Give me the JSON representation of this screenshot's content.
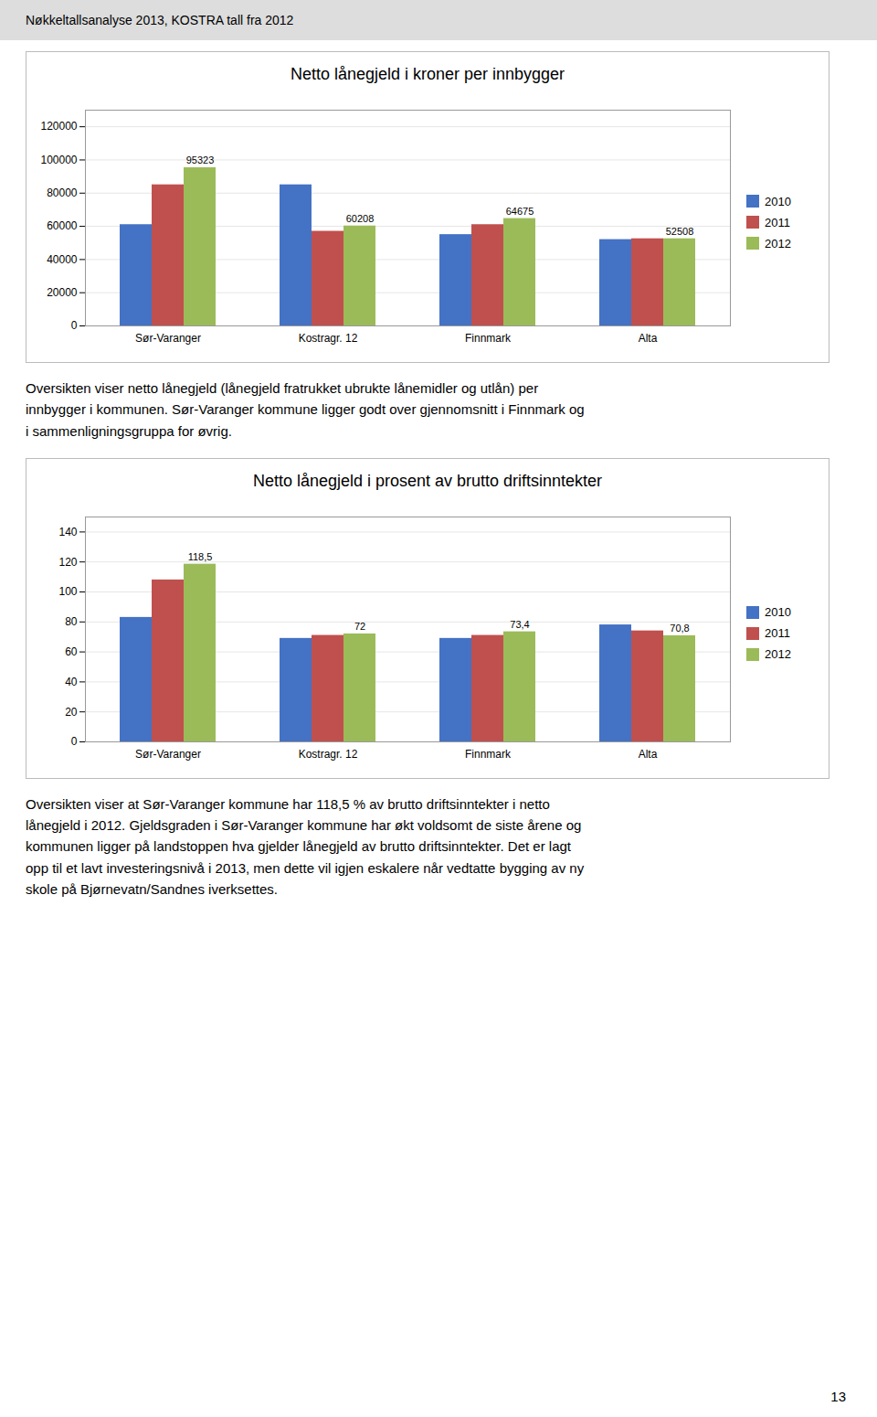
{
  "header": "Nøkkeltallsanalyse 2013, KOSTRA tall fra 2012",
  "chart_data": [
    {
      "type": "bar",
      "title": "Netto lånegjeld i kroner per innbygger",
      "categories": [
        "Sør-Varanger",
        "Kostragr. 12",
        "Finnmark",
        "Alta"
      ],
      "series": [
        {
          "name": "2010",
          "color": "#4472C4",
          "values": [
            61000,
            85000,
            55000,
            52000
          ]
        },
        {
          "name": "2011",
          "color": "#C0504D",
          "values": [
            85000,
            57000,
            61000,
            52500
          ]
        },
        {
          "name": "2012",
          "color": "#9BBB59",
          "values": [
            95323,
            60208,
            64675,
            52508
          ],
          "data_labels": true
        }
      ],
      "ylim": [
        0,
        130000
      ],
      "yticks": [
        0,
        20000,
        40000,
        60000,
        80000,
        100000,
        120000
      ],
      "grid": true,
      "legend": "right",
      "annotations": [
        "Oversikten viser netto lånegjeld (lånegjeld fratrukket ubrukte lånemidler og utlån) per",
        "innbygger i kommunen. Sør-Varanger kommune ligger godt over gjennomsnitt i Finnmark og",
        "i sammenligningsgruppa for øvrig."
      ]
    },
    {
      "type": "bar",
      "title": "Netto lånegjeld i prosent av brutto driftsinntekter",
      "categories": [
        "Sør-Varanger",
        "Kostragr. 12",
        "Finnmark",
        "Alta"
      ],
      "series": [
        {
          "name": "2010",
          "color": "#4472C4",
          "values": [
            83,
            69,
            69,
            78
          ]
        },
        {
          "name": "2011",
          "color": "#C0504D",
          "values": [
            108,
            71,
            71,
            74
          ]
        },
        {
          "name": "2012",
          "color": "#9BBB59",
          "values": [
            118.5,
            72,
            73.4,
            70.8
          ],
          "value_labels": [
            "118,5",
            "72",
            "73,4",
            "70,8"
          ],
          "data_labels": true
        }
      ],
      "ylim": [
        0,
        150
      ],
      "yticks": [
        0,
        20,
        40,
        60,
        80,
        100,
        120,
        140
      ],
      "grid": true,
      "legend": "right",
      "annotations": [
        "Oversikten viser at Sør-Varanger kommune har 118,5 % av brutto driftsinntekter i netto",
        "lånegjeld i 2012. Gjeldsgraden i Sør-Varanger kommune har økt voldsomt de siste årene og",
        "kommunen ligger på landstoppen hva gjelder lånegjeld av brutto driftsinntekter. Det er lagt",
        "opp til et lavt investeringsnivå i 2013, men dette vil igjen eskalere når vedtatte bygging av ny",
        "skole på Bjørnevatn/Sandnes iverksettes."
      ]
    }
  ],
  "footer": "13"
}
